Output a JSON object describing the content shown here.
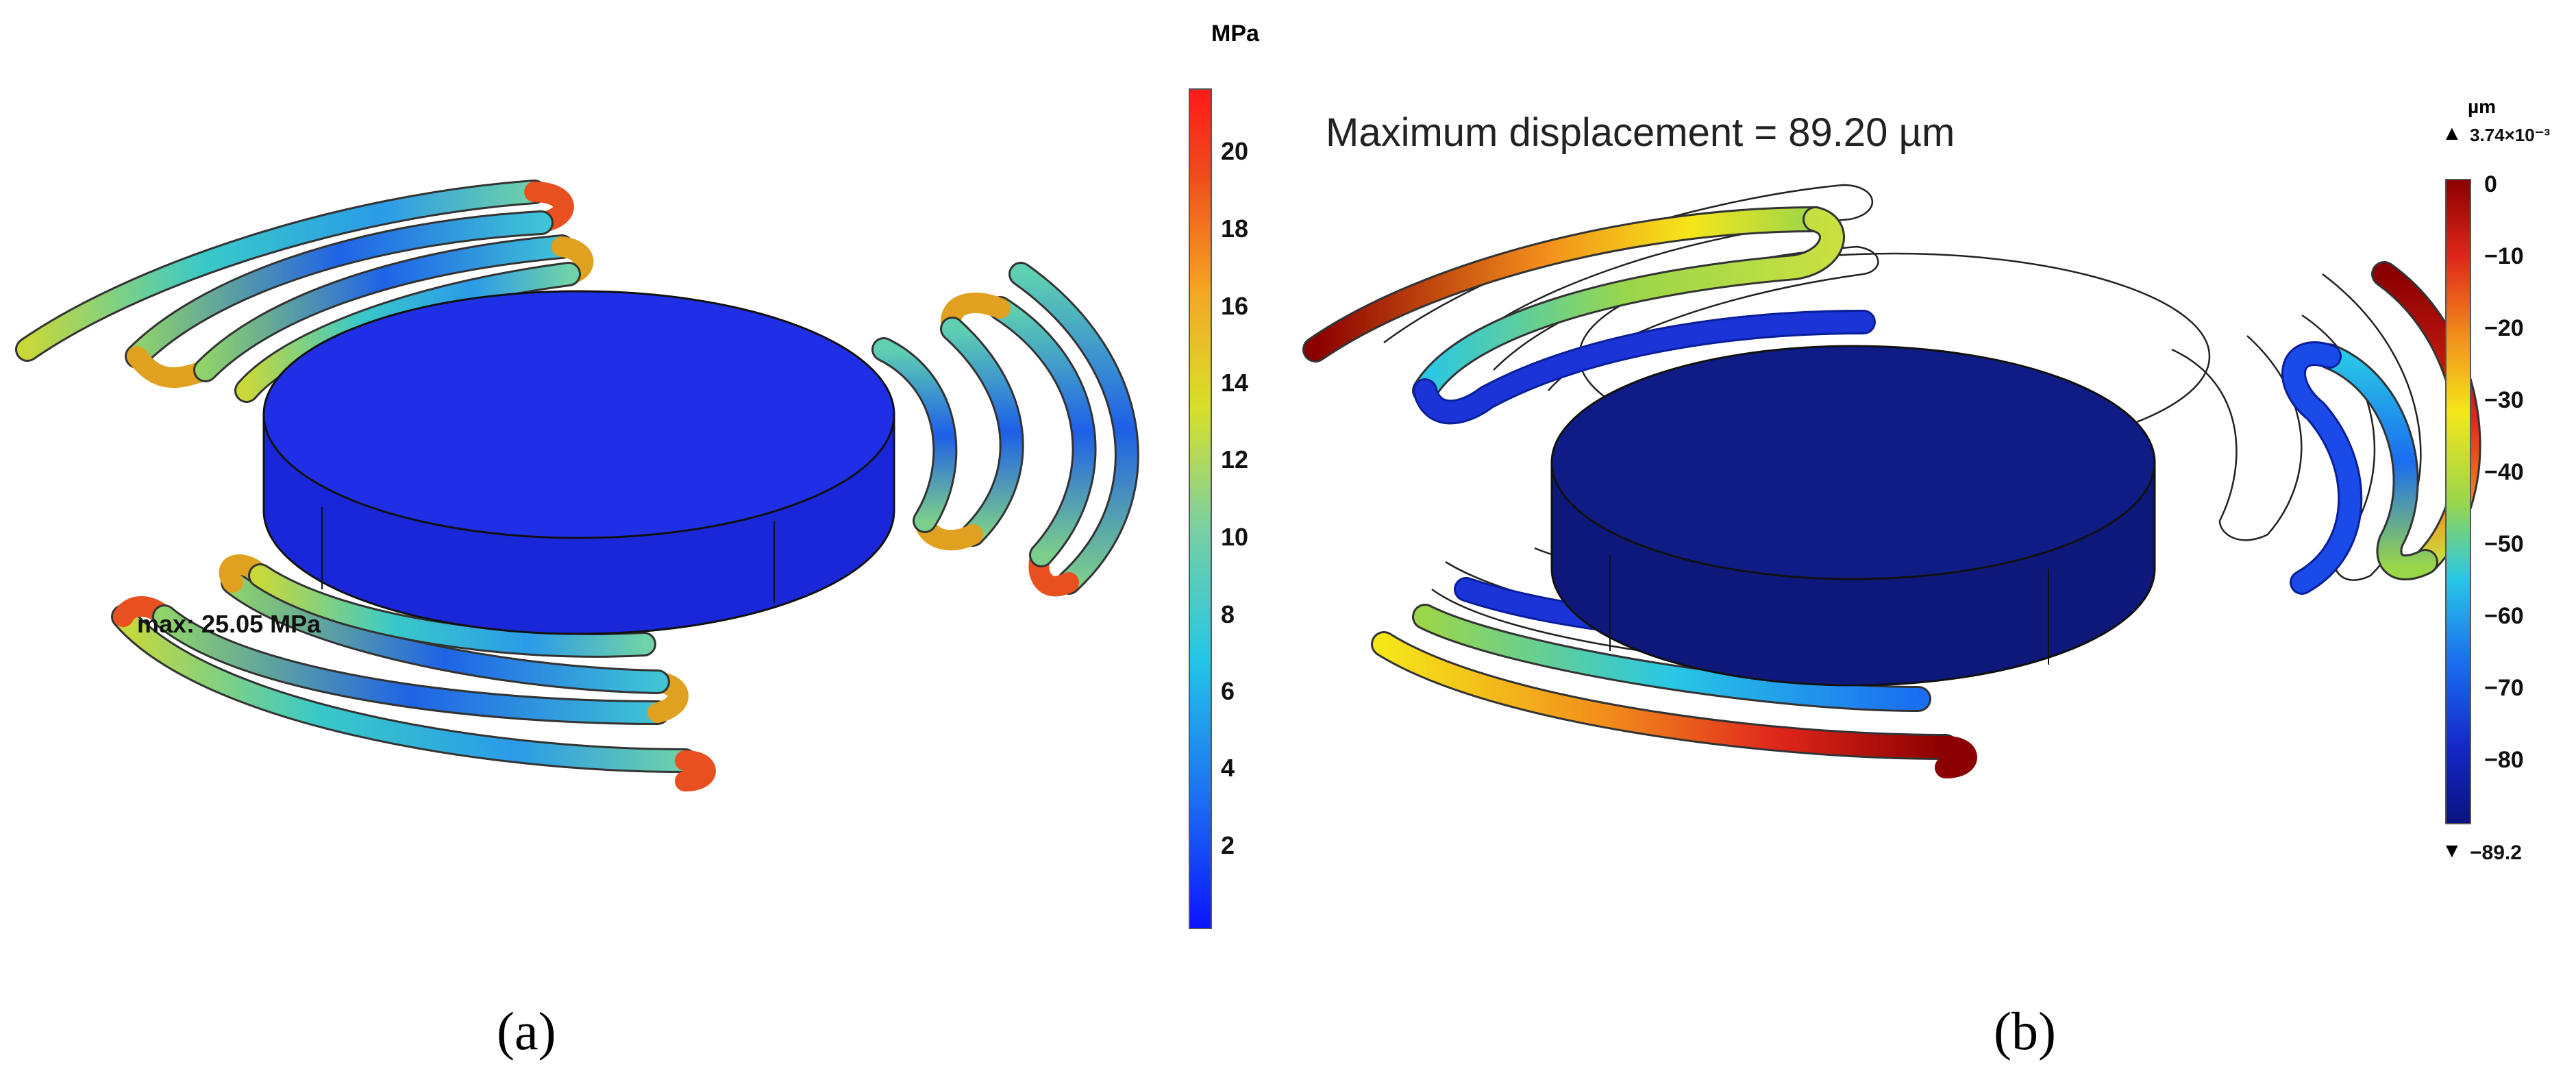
{
  "panel_a": {
    "label": "(a)",
    "colorbar": {
      "unit": "MPa",
      "ticks": [
        "20",
        "18",
        "16",
        "14",
        "12",
        "10",
        "8",
        "6",
        "4",
        "2"
      ],
      "tick_values": [
        20,
        18,
        16,
        14,
        12,
        10,
        8,
        6,
        4,
        2
      ],
      "range": [
        0,
        22
      ],
      "colors": [
        "#0a14ff",
        "#1d6cf2",
        "#23c6e8",
        "#7cd0a0",
        "#d8e02a",
        "#f5a623",
        "#ef4a1c",
        "#ff1a1a"
      ]
    },
    "annotation": "max: 25.05 MPa",
    "disk_color": "#1f2fe6"
  },
  "panel_b": {
    "label": "(b)",
    "title": "Maximum displacement = 89.20 µm",
    "colorbar": {
      "unit": "µm",
      "max_label": "3.74×10⁻³",
      "min_label": "−89.2",
      "ticks": [
        "0",
        "−10",
        "−20",
        "−30",
        "−40",
        "−50",
        "−60",
        "−70",
        "−80"
      ],
      "tick_values": [
        0,
        -10,
        -20,
        -30,
        -40,
        -50,
        -60,
        -70,
        -80
      ],
      "range": [
        -89.2,
        0
      ],
      "colors": [
        "#8b0000",
        "#e0261b",
        "#f28c1b",
        "#f5e61a",
        "#9ad64a",
        "#29c7e6",
        "#1a6df0",
        "#1428c8",
        "#0a1280"
      ]
    },
    "disk_color": "#101c86"
  }
}
